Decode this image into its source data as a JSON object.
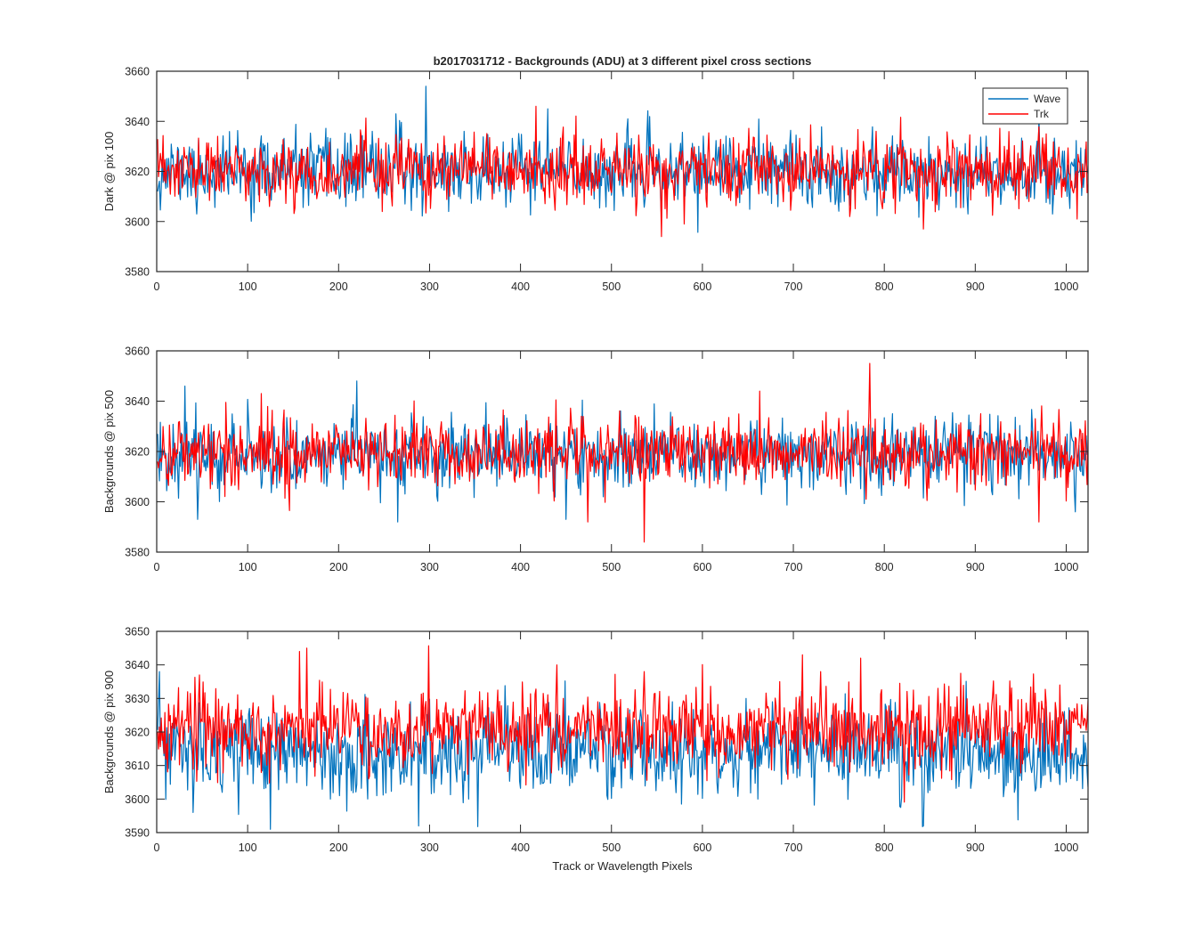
{
  "figure": {
    "title": "b2017031712 - Backgrounds (ADU) at 3 different pixel cross sections",
    "xlabel": "Track or Wavelength Pixels"
  },
  "chart_data": [
    {
      "type": "line",
      "title": "b2017031712 - Backgrounds (ADU) at 3 different pixel cross sections",
      "ylabel": "Dark @ pix 100",
      "xlabel": "",
      "xlim": [
        0,
        1024
      ],
      "ylim": [
        3580,
        3660
      ],
      "xticks": [
        0,
        100,
        200,
        300,
        400,
        500,
        600,
        700,
        800,
        900,
        1000
      ],
      "yticks": [
        3580,
        3600,
        3620,
        3640,
        3660
      ],
      "legend": {
        "show": true,
        "position": "top-right",
        "entries": [
          "Wave",
          "Trk"
        ]
      },
      "x": {
        "start": 1,
        "end": 1024,
        "step": 1
      },
      "series": [
        {
          "name": "Wave",
          "color": "#0072BD",
          "mean": 3620,
          "stdev": 7,
          "seed": 11,
          "extremes": [
            [
              296,
              3654
            ],
            [
              44,
              3603
            ],
            [
              263,
              3643
            ],
            [
              430,
              3645
            ],
            [
              555,
              3601
            ],
            [
              985,
              3603
            ]
          ]
        },
        {
          "name": "Trk",
          "color": "#FF0000",
          "mean": 3620,
          "stdev": 6.5,
          "seed": 23,
          "extremes": [
            [
              555,
              3594
            ],
            [
              417,
              3646
            ],
            [
              843,
              3597
            ],
            [
              1012,
              3601
            ],
            [
              580,
              3599
            ]
          ]
        }
      ]
    },
    {
      "type": "line",
      "title": "",
      "ylabel": "Backgrounds @ pix 500",
      "xlabel": "",
      "xlim": [
        0,
        1024
      ],
      "ylim": [
        3580,
        3660
      ],
      "xticks": [
        0,
        100,
        200,
        300,
        400,
        500,
        600,
        700,
        800,
        900,
        1000
      ],
      "yticks": [
        3580,
        3600,
        3620,
        3640,
        3660
      ],
      "legend": {
        "show": false
      },
      "x": {
        "start": 1,
        "end": 1024,
        "step": 1
      },
      "series": [
        {
          "name": "Wave",
          "color": "#0072BD",
          "mean": 3619,
          "stdev": 7,
          "seed": 37,
          "extremes": [
            [
              31,
              3646
            ],
            [
              45,
              3593
            ],
            [
              220,
              3648
            ],
            [
              265,
              3592
            ],
            [
              450,
              3593
            ],
            [
              1010,
              3596
            ]
          ]
        },
        {
          "name": "Trk",
          "color": "#FF0000",
          "mean": 3620,
          "stdev": 7,
          "seed": 41,
          "extremes": [
            [
              784,
              3655
            ],
            [
              536,
              3584
            ],
            [
              474,
              3592
            ],
            [
              663,
              3644
            ],
            [
              970,
              3592
            ]
          ]
        }
      ]
    },
    {
      "type": "line",
      "title": "",
      "ylabel": "Backgrounds @ pix 900",
      "xlabel": "Track or Wavelength Pixels",
      "xlim": [
        0,
        1024
      ],
      "ylim": [
        3590,
        3650
      ],
      "xticks": [
        0,
        100,
        200,
        300,
        400,
        500,
        600,
        700,
        800,
        900,
        1000
      ],
      "yticks": [
        3590,
        3600,
        3610,
        3620,
        3630,
        3640,
        3650
      ],
      "legend": {
        "show": false
      },
      "x": {
        "start": 1,
        "end": 1024,
        "step": 1
      },
      "series": [
        {
          "name": "Wave",
          "color": "#0072BD",
          "mean": 3614,
          "stdev": 6.5,
          "seed": 53,
          "extremes": [
            [
              125,
              3591
            ],
            [
              288,
              3592
            ],
            [
              843,
              3592
            ],
            [
              40,
              3596
            ],
            [
              3,
              3638
            ]
          ]
        },
        {
          "name": "Trk",
          "color": "#FF0000",
          "mean": 3621,
          "stdev": 6,
          "seed": 67,
          "extremes": [
            [
              165,
              3645
            ],
            [
              157,
              3644
            ],
            [
              710,
              3643
            ],
            [
              774,
              3642
            ],
            [
              440,
              3640
            ]
          ]
        }
      ]
    }
  ]
}
